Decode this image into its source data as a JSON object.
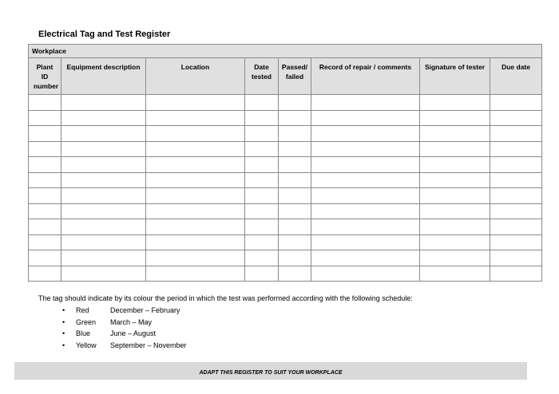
{
  "title": "Electrical Tag and Test Register",
  "table": {
    "workplace_label": "Workplace",
    "columns": [
      "Plant ID number",
      "Equipment description",
      "Location",
      "Date tested",
      "Passed/ failed",
      "Record of repair / comments",
      "Signature of tester",
      "Due date"
    ],
    "rows": [
      [
        "",
        "",
        "",
        "",
        "",
        "",
        "",
        ""
      ],
      [
        "",
        "",
        "",
        "",
        "",
        "",
        "",
        ""
      ],
      [
        "",
        "",
        "",
        "",
        "",
        "",
        "",
        ""
      ],
      [
        "",
        "",
        "",
        "",
        "",
        "",
        "",
        ""
      ],
      [
        "",
        "",
        "",
        "",
        "",
        "",
        "",
        ""
      ],
      [
        "",
        "",
        "",
        "",
        "",
        "",
        "",
        ""
      ],
      [
        "",
        "",
        "",
        "",
        "",
        "",
        "",
        ""
      ],
      [
        "",
        "",
        "",
        "",
        "",
        "",
        "",
        ""
      ],
      [
        "",
        "",
        "",
        "",
        "",
        "",
        "",
        ""
      ],
      [
        "",
        "",
        "",
        "",
        "",
        "",
        "",
        ""
      ],
      [
        "",
        "",
        "",
        "",
        "",
        "",
        "",
        ""
      ],
      [
        "",
        "",
        "",
        "",
        "",
        "",
        "",
        ""
      ]
    ]
  },
  "note": "The tag should indicate by its colour the period in which the test was performed according with the following schedule:",
  "schedule": [
    {
      "bullet": "•",
      "colour": "Red",
      "period": "December – February"
    },
    {
      "bullet": "•",
      "colour": "Green",
      "period": "March – May"
    },
    {
      "bullet": "•",
      "colour": "Blue",
      "period": "June – August"
    },
    {
      "bullet": "•",
      "colour": "Yellow",
      "period": "September – November"
    }
  ],
  "footer": "ADAPT THIS REGISTER TO SUIT YOUR WORKPLACE"
}
